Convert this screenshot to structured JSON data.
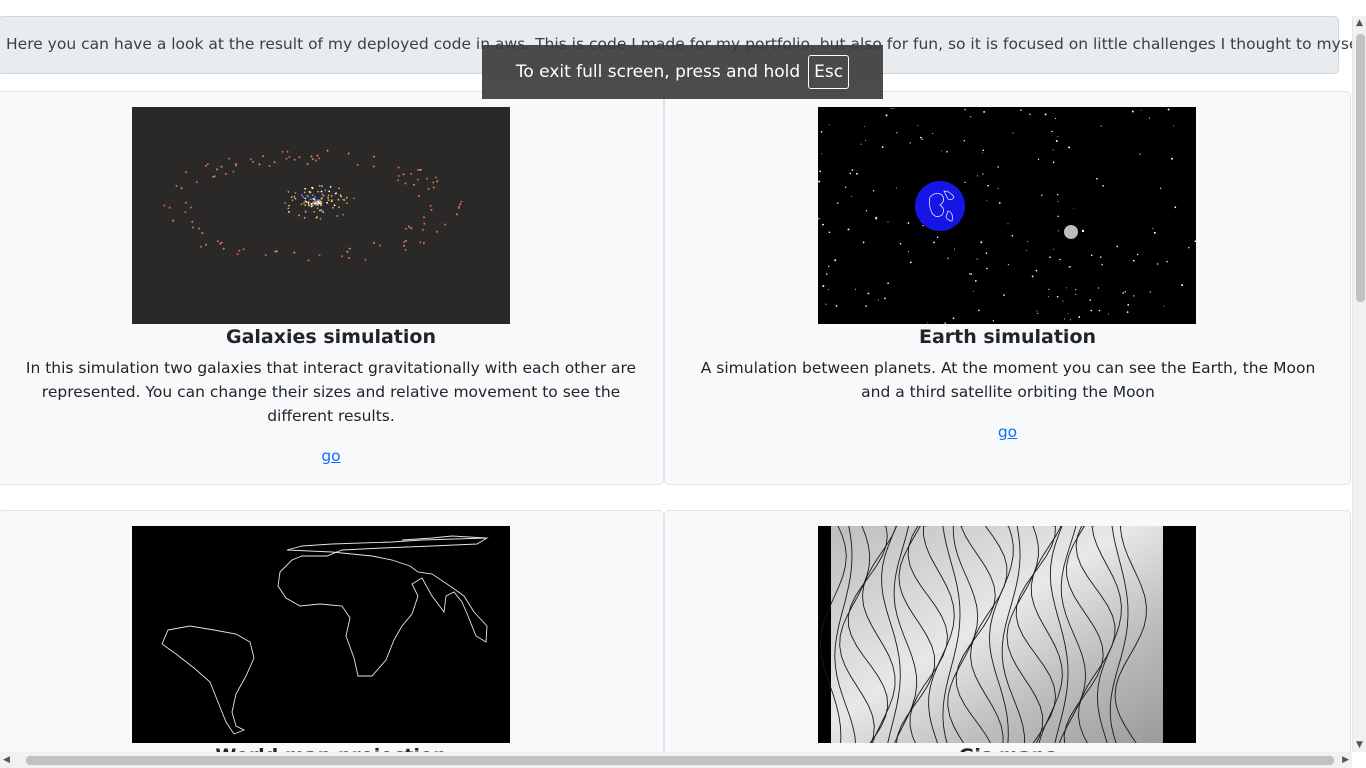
{
  "intro": {
    "text": "Here you can have a look at the result of my deployed code in aws. This is code I made for my portfolio, but also for fun, so it is focused on little challenges I thought to myself."
  },
  "fullscreen_notice": {
    "text": "To exit full screen, press and hold",
    "key": "Esc"
  },
  "cards": [
    {
      "title": "Galaxies simulation",
      "description": "In this simulation two galaxies that interact gravitationally with each other are represented. You can change their sizes and relative movement to see the different results.",
      "link": "go"
    },
    {
      "title": "Earth simulation",
      "description": "A simulation between planets. At the moment you can see the Earth, the Moon and a third satellite orbiting the Moon",
      "link": "go"
    },
    {
      "title": "World map projection"
    },
    {
      "title": "Gis maps"
    }
  ],
  "colors": {
    "card_bg": "#f8f9fa",
    "link": "#0d6efd",
    "intro_bg": "#e9ecef",
    "galaxy_bg": "#2b2828",
    "space_bg": "#000000",
    "earth": "#1515e6"
  }
}
